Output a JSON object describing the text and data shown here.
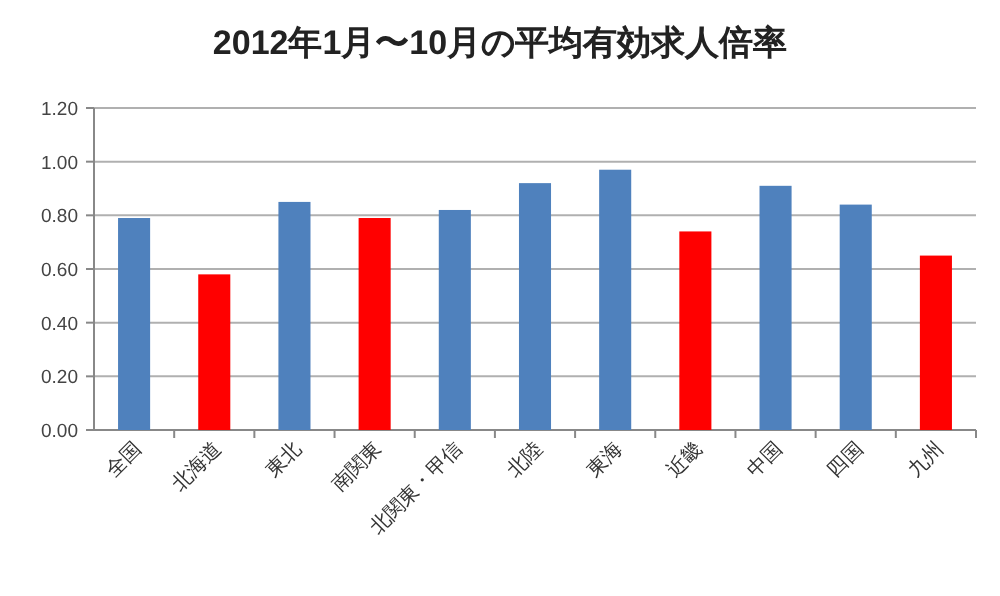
{
  "chart_data": {
    "type": "bar",
    "title": "2012年1月〜10月の平均有効求人倍率",
    "categories": [
      "全国",
      "北海道",
      "東北",
      "南関東",
      "北関東・甲信",
      "北陸",
      "東海",
      "近畿",
      "中国",
      "四国",
      "九州"
    ],
    "values": [
      0.79,
      0.58,
      0.85,
      0.79,
      0.82,
      0.92,
      0.97,
      0.74,
      0.91,
      0.84,
      0.65
    ],
    "colors": [
      "#4f81bd",
      "#ff0000",
      "#4f81bd",
      "#ff0000",
      "#4f81bd",
      "#4f81bd",
      "#4f81bd",
      "#ff0000",
      "#4f81bd",
      "#4f81bd",
      "#ff0000"
    ],
    "ylim": [
      0,
      1.2
    ],
    "yticks": [
      {
        "value": 0,
        "label": "0.00"
      },
      {
        "value": 0.2,
        "label": "0.20"
      },
      {
        "value": 0.4,
        "label": "0.40"
      },
      {
        "value": 0.6,
        "label": "0.60"
      },
      {
        "value": 0.8,
        "label": "0.80"
      },
      {
        "value": 1.0,
        "label": "1.00"
      },
      {
        "value": 1.2,
        "label": "1.20"
      }
    ],
    "grid": "y"
  }
}
